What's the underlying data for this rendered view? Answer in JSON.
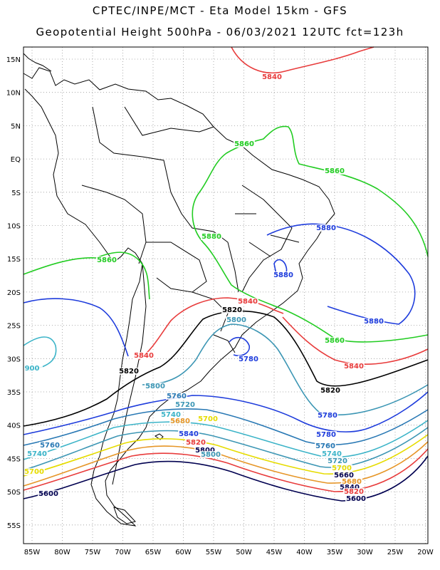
{
  "header": {
    "line1": "CPTEC/INPE/MCT  -  Eta Model 15km  -  GFS",
    "line2": "Geopotential Height 500hPa  -  06/03/2021  12UTC  fct=123h"
  },
  "axes": {
    "lat_labels": [
      "15N",
      "10N",
      "5N",
      "EQ",
      "5S",
      "10S",
      "15S",
      "20S",
      "25S",
      "30S",
      "35S",
      "40S",
      "45S",
      "50S",
      "55S"
    ],
    "lon_labels": [
      "85W",
      "80W",
      "75W",
      "70W",
      "65W",
      "60W",
      "55W",
      "50W",
      "45W",
      "40W",
      "35W",
      "30W",
      "25W",
      "20W"
    ]
  },
  "contour_labels": [
    {
      "text": "5840",
      "color": "#e83c3c"
    },
    {
      "text": "5860",
      "color": "#22cc22"
    },
    {
      "text": "5860",
      "color": "#22cc22"
    },
    {
      "text": "5880",
      "color": "#22cc22"
    },
    {
      "text": "5880",
      "color": "#1e3cdc"
    },
    {
      "text": "5860",
      "color": "#22cc22"
    },
    {
      "text": "5880",
      "color": "#1e3cdc"
    },
    {
      "text": "5840",
      "color": "#e83c3c"
    },
    {
      "text": "5820",
      "color": "#000000"
    },
    {
      "text": "5800",
      "color": "#3c96b4"
    },
    {
      "text": "5880",
      "color": "#1e3cdc"
    },
    {
      "text": "5860",
      "color": "#22cc22"
    },
    {
      "text": "5780",
      "color": "#1e3cdc"
    },
    {
      "text": "5840",
      "color": "#e83c3c"
    },
    {
      "text": "5840",
      "color": "#e83c3c"
    },
    {
      "text": "5820",
      "color": "#000000"
    },
    {
      "text": "5820",
      "color": "#000000"
    },
    {
      "text": "5800",
      "color": "#3c96b4"
    },
    {
      "text": "5780",
      "color": "#1e3cdc"
    },
    {
      "text": "5760",
      "color": "#2878b4"
    },
    {
      "text": "5720",
      "color": "#3c96b4"
    },
    {
      "text": "5740",
      "color": "#3cb4c8"
    },
    {
      "text": "5700",
      "color": "#e6dc00"
    },
    {
      "text": "5680",
      "color": "#e69628"
    },
    {
      "text": "5840",
      "color": "#1e3cdc"
    },
    {
      "text": "5820",
      "color": "#e83c3c"
    },
    {
      "text": "5800",
      "color": "#000050"
    },
    {
      "text": "5800",
      "color": "#3c96b4"
    },
    {
      "text": "5780",
      "color": "#1e3cdc"
    },
    {
      "text": "5760",
      "color": "#2878b4"
    },
    {
      "text": "5740",
      "color": "#3cb4c8"
    },
    {
      "text": "5720",
      "color": "#3c96b4"
    },
    {
      "text": "5700",
      "color": "#e6dc00"
    },
    {
      "text": "5660",
      "color": "#000050"
    },
    {
      "text": "5680",
      "color": "#e69628"
    },
    {
      "text": "5840",
      "color": "#000050"
    },
    {
      "text": "5820",
      "color": "#e83c3c"
    },
    {
      "text": "5600",
      "color": "#000050"
    },
    {
      "text": "5760",
      "color": "#2878b4"
    },
    {
      "text": "5740",
      "color": "#3cb4c8"
    },
    {
      "text": "5700",
      "color": "#e6dc00"
    },
    {
      "text": "5600",
      "color": "#000050"
    },
    {
      "text": "900",
      "color": "#3cb4c8"
    }
  ]
}
